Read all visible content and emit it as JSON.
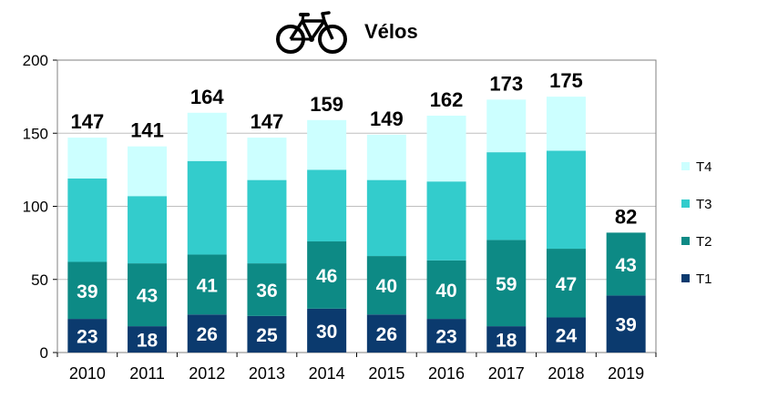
{
  "chart_data": {
    "type": "bar",
    "stacked": true,
    "title": "Vélos",
    "title_icon": "bicycle-icon",
    "categories": [
      "2010",
      "2011",
      "2012",
      "2013",
      "2014",
      "2015",
      "2016",
      "2017",
      "2018",
      "2019"
    ],
    "series": [
      {
        "name": "T1",
        "color": "#0b3a6e",
        "values": [
          23,
          18,
          26,
          25,
          30,
          26,
          23,
          18,
          24,
          39
        ],
        "labels": [
          "23",
          "18",
          "26",
          "25",
          "30",
          "26",
          "23",
          "18",
          "24",
          "39"
        ]
      },
      {
        "name": "T2",
        "color": "#0d8a85",
        "values": [
          39,
          43,
          41,
          36,
          46,
          40,
          40,
          59,
          47,
          43
        ],
        "labels": [
          "39",
          "43",
          "41",
          "36",
          "46",
          "40",
          "40",
          "59",
          "47",
          "43"
        ]
      },
      {
        "name": "T3",
        "color": "#33cccc",
        "values": [
          57,
          46,
          64,
          57,
          49,
          52,
          54,
          60,
          67,
          0
        ]
      },
      {
        "name": "T4",
        "color": "#ccffff",
        "values": [
          28,
          34,
          33,
          29,
          34,
          31,
          45,
          36,
          37,
          0
        ]
      }
    ],
    "totals": [
      "147",
      "141",
      "164",
      "147",
      "159",
      "149",
      "162",
      "173",
      "175",
      "82"
    ],
    "ylim": [
      0,
      200
    ],
    "yticks": [
      "0",
      "50",
      "100",
      "150",
      "200"
    ],
    "grid": true,
    "legend_position": "right"
  }
}
